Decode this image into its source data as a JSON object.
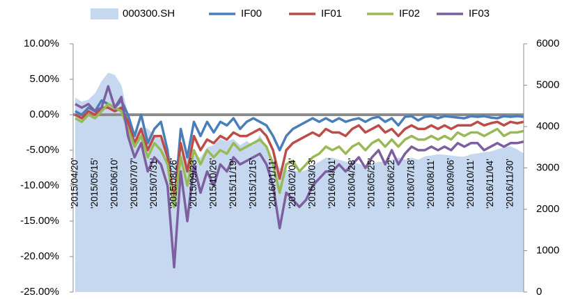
{
  "chart_data": {
    "type": "line",
    "legend": "top",
    "categories": [
      "'2015/04/20'",
      null,
      null,
      "'2015/05/15'",
      null,
      null,
      "'2015/06/10'",
      null,
      null,
      "'2015/07/07'",
      null,
      null,
      "'2015/07/31'",
      null,
      null,
      "'2015/08/26'",
      null,
      null,
      "'2015/09/23'",
      null,
      null,
      "'2015/10/26'",
      null,
      null,
      "'2015/11/19'",
      null,
      null,
      "'2015/12/15'",
      null,
      null,
      "'2016/01/11'",
      null,
      null,
      "'2016/02/04'",
      null,
      null,
      "'2016/03/03'",
      null,
      null,
      "'2016/04/01'",
      null,
      null,
      "'2016/04/28'",
      null,
      null,
      "'2016/05/25'",
      null,
      null,
      "'2016/06/22'",
      null,
      null,
      "'2016/07/18'",
      null,
      null,
      "'2016/08/11'",
      null,
      null,
      "'2016/09/06'",
      null,
      null,
      "'2016/10/11'",
      null,
      null,
      "'2016/11/04'",
      null,
      null,
      "'2016/11/30'",
      null,
      null
    ],
    "series": [
      {
        "name": "000300.SH",
        "color": "#c6d8ef",
        "type": "area",
        "axis": "y2",
        "values": [
          4700,
          4600,
          4650,
          4800,
          5100,
          5300,
          5250,
          5000,
          4300,
          3800,
          4000,
          3950,
          3800,
          3700,
          3400,
          3100,
          3350,
          3250,
          3300,
          3250,
          3500,
          3550,
          3700,
          3650,
          3700,
          3550,
          3650,
          3550,
          3800,
          3500,
          3200,
          3000,
          2950,
          2950,
          2900,
          2950,
          3050,
          3150,
          3250,
          3250,
          3200,
          3150,
          3150,
          3100,
          3050,
          3100,
          3150,
          3150,
          3200,
          3250,
          3200,
          3250,
          3200,
          3280,
          3300,
          3330,
          3320,
          3300,
          3280,
          3270,
          3330,
          3350,
          3380,
          3400,
          3450,
          3500,
          3520,
          3450,
          3350
        ]
      },
      {
        "name": "IF00",
        "color": "#4a7ebb",
        "values": [
          0.5,
          0,
          1,
          0.5,
          2,
          1.5,
          1,
          2,
          0,
          -3,
          0,
          -4,
          -2,
          -1,
          -5,
          -13,
          -2,
          -6,
          -1,
          -3,
          -1,
          -2.5,
          -1,
          -1.5,
          -0.5,
          -2,
          -1,
          -0.5,
          -1,
          -1.5,
          -3,
          -5,
          -3,
          -2,
          -1.5,
          -1,
          -0.5,
          -1,
          -0.5,
          -1,
          -0.5,
          -1,
          -0.7,
          -0.5,
          -1,
          -0.5,
          -0.3,
          -1,
          -0.5,
          -1.5,
          -0.3,
          -0.2,
          -0.8,
          -0.3,
          -0.2,
          -0.5,
          -0.2,
          -0.3,
          -0.4,
          -0.5,
          -0.2,
          -0.3,
          -0.2,
          -0.4,
          -0.5,
          -0.2,
          -0.3,
          -0.2,
          -0.3
        ]
      },
      {
        "name": "IF01",
        "color": "#be4b48",
        "values": [
          0,
          -0.5,
          0.5,
          0,
          1,
          1,
          0.5,
          1,
          -1,
          -4,
          -2,
          -5,
          -3,
          -3,
          -6,
          -12,
          -4,
          -8,
          -3,
          -5,
          -3.5,
          -4,
          -3,
          -3.5,
          -2.5,
          -3,
          -3,
          -2.5,
          -2,
          -3,
          -5,
          -9,
          -5,
          -4,
          -3.5,
          -3,
          -2.5,
          -3,
          -2,
          -2.5,
          -2.5,
          -3,
          -2,
          -1.5,
          -2.5,
          -2,
          -1.5,
          -2.5,
          -2,
          -3,
          -2,
          -1.5,
          -2,
          -2,
          -1.5,
          -2,
          -1.5,
          -2,
          -1.5,
          -1.5,
          -1.5,
          -1,
          -1.5,
          -1.2,
          -1,
          -1.5,
          -1,
          -1.2,
          -1
        ]
      },
      {
        "name": "IF02",
        "color": "#98b954",
        "values": [
          -0.5,
          -1,
          0,
          -0.5,
          0.5,
          1.5,
          1,
          0.5,
          -2,
          -4.5,
          -3,
          -6,
          -4,
          -5,
          -7,
          -13,
          -6,
          -10,
          -5,
          -7,
          -5,
          -6,
          -5,
          -5.5,
          -4,
          -5,
          -4.5,
          -4,
          -3.5,
          -4.5,
          -7,
          -11,
          -7,
          -6.5,
          -8,
          -7,
          -6,
          -5.5,
          -4.5,
          -5,
          -4.5,
          -5.5,
          -4.5,
          -4,
          -5,
          -4,
          -3.5,
          -4.5,
          -3.5,
          -4.5,
          -3.5,
          -3,
          -3.5,
          -3.5,
          -3,
          -3.5,
          -3,
          -3.5,
          -2.5,
          -3,
          -2.5,
          -2.5,
          -3,
          -2.5,
          -2,
          -3,
          -2.5,
          -2.5,
          -2.3
        ]
      },
      {
        "name": "IF03",
        "color": "#7d5fa0",
        "values": [
          1.5,
          1,
          1.5,
          0.5,
          1,
          4,
          1,
          2.5,
          -3,
          -6,
          -4,
          -8,
          -6,
          -7,
          -10,
          -21.5,
          -8,
          -15,
          -7,
          -11,
          -8,
          -10,
          -7,
          -8,
          -6,
          -7,
          -6.5,
          -6,
          -5.5,
          -7,
          -10,
          -16,
          -11,
          -12,
          -13,
          -12,
          -10,
          -9,
          -8,
          -8,
          -7,
          -8,
          -7,
          -6,
          -7.5,
          -6,
          -5,
          -7,
          -5,
          -7,
          -5.5,
          -4.5,
          -5,
          -5,
          -4.5,
          -5,
          -4.5,
          -5,
          -4,
          -4.5,
          -4,
          -4,
          -5,
          -4.5,
          -4,
          -4.5,
          -4,
          -4,
          -3.8
        ]
      }
    ],
    "ylim": [
      -25,
      10
    ],
    "yticks": [
      {
        "value": -25,
        "label": "-25.00%"
      },
      {
        "value": -20,
        "label": "-20.00%"
      },
      {
        "value": -15,
        "label": "-15.00%"
      },
      {
        "value": -10,
        "label": "-10.00%"
      },
      {
        "value": -5,
        "label": "-5.00%"
      },
      {
        "value": 0,
        "label": "0.00%"
      },
      {
        "value": 5,
        "label": "5.00%"
      },
      {
        "value": 10,
        "label": "10.00%"
      }
    ],
    "y2lim": [
      0,
      6000
    ],
    "y2ticks": [
      0,
      1000,
      2000,
      3000,
      4000,
      5000,
      6000
    ],
    "grid": false
  }
}
